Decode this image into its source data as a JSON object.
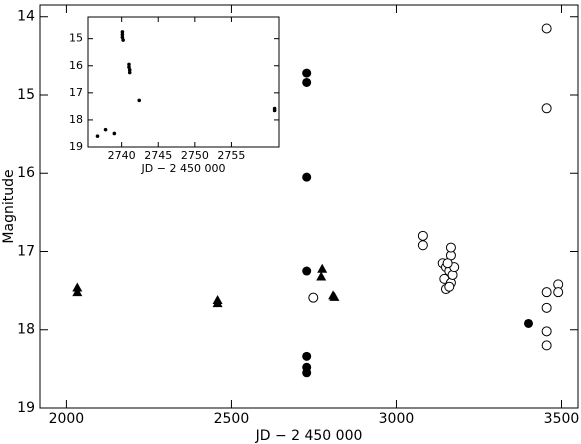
{
  "chart_data": [
    {
      "type": "scatter",
      "x_label": "JD − 2 450 000",
      "y_label": "Magnitude",
      "xlim": [
        1920,
        3550
      ],
      "ylim": [
        13.85,
        19
      ],
      "y_inverted": true,
      "xticks": [
        2000,
        2500,
        3000,
        3500
      ],
      "yticks": [
        14,
        15,
        16,
        17,
        18,
        19
      ],
      "series": [
        {
          "marker": "filled-circle",
          "color": "#000000",
          "x": [
            2728,
            2728,
            2728,
            2728,
            2728,
            2728,
            2728,
            3400
          ],
          "values": [
            14.72,
            14.84,
            16.05,
            17.25,
            18.34,
            18.48,
            18.55,
            17.92
          ]
        },
        {
          "marker": "triangle",
          "color": "#000000",
          "x": [
            2033,
            2033,
            2458,
            2458,
            2775,
            2772,
            2808,
            2812
          ],
          "values": [
            17.46,
            17.52,
            17.62,
            17.66,
            17.22,
            17.32,
            17.56,
            17.58
          ]
        },
        {
          "marker": "open-circle",
          "color": "#000000",
          "x": [
            2748,
            3080,
            3080,
            3140,
            3150,
            3145,
            3150,
            3160,
            3165,
            3165,
            3165,
            3170,
            3175,
            3155,
            3160,
            3455,
            3455,
            3455,
            3455,
            3455,
            3455,
            3490,
            3490
          ],
          "values": [
            17.59,
            16.8,
            16.92,
            17.15,
            17.2,
            17.35,
            17.48,
            17.25,
            17.05,
            16.95,
            17.4,
            17.3,
            17.2,
            17.15,
            17.45,
            14.15,
            15.17,
            17.52,
            17.72,
            18.02,
            18.2,
            17.42,
            17.52
          ]
        }
      ]
    },
    {
      "type": "scatter",
      "x_label": "JD − 2 450 000",
      "xlim": [
        2735.4,
        2761.5
      ],
      "ylim": [
        14.2,
        19
      ],
      "y_inverted": true,
      "xticks": [
        2740,
        2745,
        2750,
        2755
      ],
      "yticks": [
        15,
        16,
        17,
        18,
        19
      ],
      "series": [
        {
          "marker": "small-dot",
          "color": "#000000",
          "x": [
            2740.1,
            2740.1,
            2740.1,
            2740.2,
            2741,
            2741,
            2741.1,
            2741.1,
            2742.4,
            2736.7,
            2737.8,
            2739,
            2760.9,
            2760.9
          ],
          "values": [
            14.75,
            14.85,
            14.95,
            15.05,
            15.95,
            16.05,
            16.15,
            16.25,
            17.28,
            18.6,
            18.36,
            18.5,
            17.58,
            17.65
          ]
        }
      ]
    }
  ]
}
